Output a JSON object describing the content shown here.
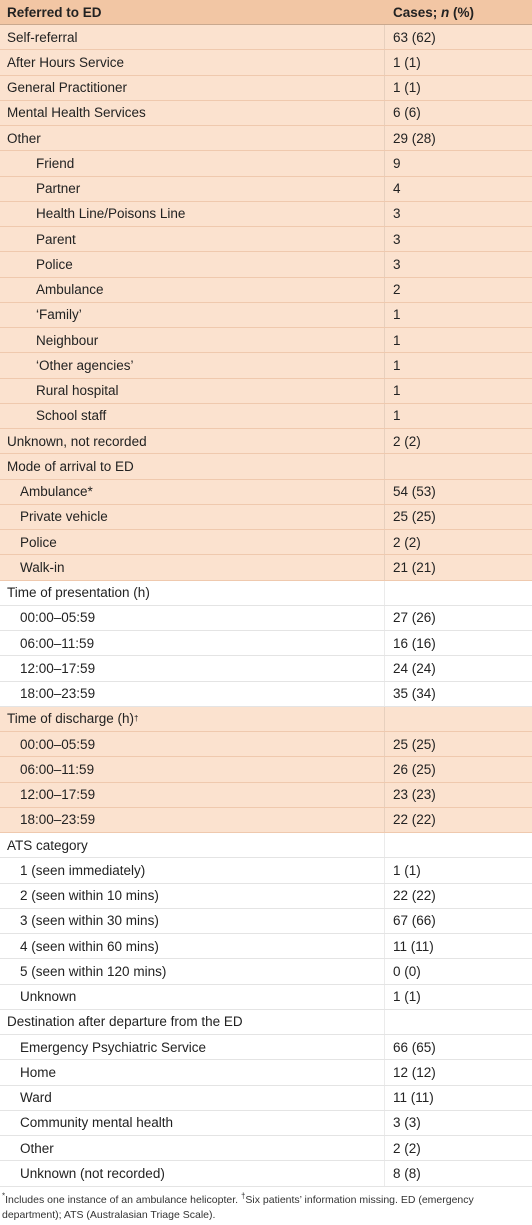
{
  "table": {
    "header": {
      "col1": "Referred to ED",
      "col2_prefix": "Cases; ",
      "col2_italic": "n",
      "col2_suffix": " (%)"
    },
    "rows": [
      {
        "label": "Self-referral",
        "value": "63 (62)",
        "level": 0,
        "shade": "peach"
      },
      {
        "label": "After Hours Service",
        "value": "1 (1)",
        "level": 0,
        "shade": "peach"
      },
      {
        "label": "General Practitioner",
        "value": "1 (1)",
        "level": 0,
        "shade": "peach"
      },
      {
        "label": "Mental Health Services",
        "value": "6 (6)",
        "level": 0,
        "shade": "peach"
      },
      {
        "label": "Other",
        "value": "29 (28)",
        "level": 0,
        "shade": "peach"
      },
      {
        "label": "Friend",
        "value": "9",
        "level": 2,
        "shade": "peach"
      },
      {
        "label": "Partner",
        "value": "4",
        "level": 2,
        "shade": "peach"
      },
      {
        "label": "Health Line/Poisons Line",
        "value": "3",
        "level": 2,
        "shade": "peach"
      },
      {
        "label": "Parent",
        "value": "3",
        "level": 2,
        "shade": "peach"
      },
      {
        "label": "Police",
        "value": "3",
        "level": 2,
        "shade": "peach"
      },
      {
        "label": "Ambulance",
        "value": "2",
        "level": 2,
        "shade": "peach"
      },
      {
        "label": "‘Family’",
        "value": "1",
        "level": 2,
        "shade": "peach"
      },
      {
        "label": "Neighbour",
        "value": "1",
        "level": 2,
        "shade": "peach"
      },
      {
        "label": "‘Other agencies’",
        "value": "1",
        "level": 2,
        "shade": "peach"
      },
      {
        "label": "Rural hospital",
        "value": "1",
        "level": 2,
        "shade": "peach"
      },
      {
        "label": "School staff",
        "value": "1",
        "level": 2,
        "shade": "peach"
      },
      {
        "label": "Unknown, not recorded",
        "value": "2 (2)",
        "level": 0,
        "shade": "peach"
      },
      {
        "label": "Mode of arrival to ED",
        "value": "",
        "level": 0,
        "shade": "peach"
      },
      {
        "label": "Ambulance*",
        "value": "54 (53)",
        "level": 1,
        "shade": "peach"
      },
      {
        "label": "Private vehicle",
        "value": "25 (25)",
        "level": 1,
        "shade": "peach"
      },
      {
        "label": "Police",
        "value": "2 (2)",
        "level": 1,
        "shade": "peach"
      },
      {
        "label": "Walk-in",
        "value": "21 (21)",
        "level": 1,
        "shade": "peach"
      },
      {
        "label": "Time of presentation (h)",
        "value": "",
        "level": 0,
        "shade": "white"
      },
      {
        "label": "00:00–05:59",
        "value": "27 (26)",
        "level": 1,
        "shade": "white"
      },
      {
        "label": "06:00–11:59",
        "value": "16 (16)",
        "level": 1,
        "shade": "white"
      },
      {
        "label": "12:00–17:59",
        "value": "24 (24)",
        "level": 1,
        "shade": "white"
      },
      {
        "label": "18:00–23:59",
        "value": "35 (34)",
        "level": 1,
        "shade": "white"
      },
      {
        "label": "Time of discharge (h)",
        "sup": "†",
        "value": "",
        "level": 0,
        "shade": "peach"
      },
      {
        "label": "00:00–05:59",
        "value": "25 (25)",
        "level": 1,
        "shade": "peach"
      },
      {
        "label": "06:00–11:59",
        "value": "26 (25)",
        "level": 1,
        "shade": "peach"
      },
      {
        "label": "12:00–17:59",
        "value": "23 (23)",
        "level": 1,
        "shade": "peach"
      },
      {
        "label": "18:00–23:59",
        "value": "22 (22)",
        "level": 1,
        "shade": "peach"
      },
      {
        "label": "ATS category",
        "value": "",
        "level": 0,
        "shade": "white"
      },
      {
        "label": "1 (seen immediately)",
        "value": "1 (1)",
        "level": 1,
        "shade": "white"
      },
      {
        "label": "2 (seen within 10 mins)",
        "value": "22 (22)",
        "level": 1,
        "shade": "white"
      },
      {
        "label": "3 (seen within 30 mins)",
        "value": "67 (66)",
        "level": 1,
        "shade": "white"
      },
      {
        "label": "4 (seen within 60 mins)",
        "value": "11 (11)",
        "level": 1,
        "shade": "white"
      },
      {
        "label": "5 (seen within 120 mins)",
        "value": "0 (0)",
        "level": 1,
        "shade": "white"
      },
      {
        "label": "Unknown",
        "value": "1 (1)",
        "level": 1,
        "shade": "white"
      },
      {
        "label": "Destination after departure from the ED",
        "value": "",
        "level": 0,
        "shade": "white"
      },
      {
        "label": "Emergency Psychiatric Service",
        "value": "66 (65)",
        "level": 1,
        "shade": "white"
      },
      {
        "label": "Home",
        "value": "12 (12)",
        "level": 1,
        "shade": "white"
      },
      {
        "label": "Ward",
        "value": "11 (11)",
        "level": 1,
        "shade": "white"
      },
      {
        "label": "Community mental health",
        "value": "3 (3)",
        "level": 1,
        "shade": "white"
      },
      {
        "label": "Other",
        "value": "2 (2)",
        "level": 1,
        "shade": "white"
      },
      {
        "label": "Unknown (not recorded)",
        "value": "8 (8)",
        "level": 1,
        "shade": "white"
      }
    ]
  },
  "footnote": {
    "star_mark": "*",
    "star_text": "Includes one instance of an ambulance helicopter. ",
    "dagger_mark": "†",
    "dagger_text": "Six patients’ information missing. ED (emergency department); ATS (Australasian Triage Scale)."
  },
  "colors": {
    "header_bg": "#f2c6a4",
    "peach_row_bg": "#fbe2cf",
    "white_row_bg": "#ffffff"
  }
}
